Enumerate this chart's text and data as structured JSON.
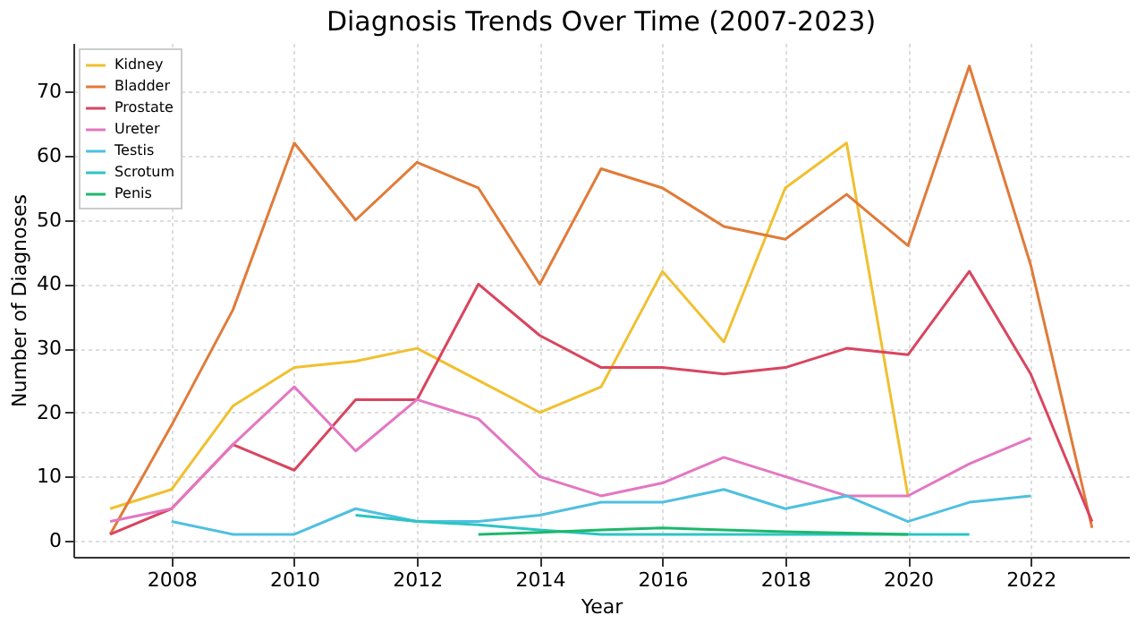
{
  "chart_data": {
    "type": "line",
    "title": "Diagnosis Trends Over Time (2007-2023)",
    "xlabel": "Year",
    "ylabel": "Number of Diagnoses",
    "x": [
      2007,
      2008,
      2009,
      2010,
      2011,
      2012,
      2013,
      2014,
      2015,
      2016,
      2017,
      2018,
      2019,
      2020,
      2021,
      2022,
      2023
    ],
    "series": [
      {
        "name": "Kidney",
        "color": "#f0c030",
        "values": [
          5,
          8,
          21,
          27,
          28,
          30,
          25,
          20,
          24,
          42,
          31,
          55,
          62,
          7,
          null,
          null,
          null
        ]
      },
      {
        "name": "Bladder",
        "color": "#e07b39",
        "values": [
          1,
          18,
          36,
          62,
          50,
          59,
          55,
          40,
          58,
          55,
          49,
          47,
          54,
          46,
          74,
          43,
          2
        ]
      },
      {
        "name": "Prostate",
        "color": "#d9455f",
        "values": [
          1,
          5,
          15,
          11,
          22,
          22,
          40,
          32,
          27,
          27,
          26,
          27,
          30,
          29,
          42,
          26,
          3
        ]
      },
      {
        "name": "Ureter",
        "color": "#e377c2",
        "values": [
          3,
          5,
          15,
          24,
          14,
          22,
          19,
          10,
          7,
          9,
          13,
          10,
          7,
          7,
          12,
          16,
          null
        ]
      },
      {
        "name": "Testis",
        "color": "#4fc0e0",
        "values": [
          null,
          3,
          1,
          1,
          5,
          3,
          3,
          4,
          6,
          6,
          8,
          5,
          7,
          3,
          6,
          7,
          null
        ]
      },
      {
        "name": "Scrotum",
        "color": "#2ec4c4",
        "values": [
          null,
          null,
          null,
          null,
          4,
          3,
          2.5,
          1.7,
          1,
          1,
          1,
          1,
          1,
          1,
          1,
          null,
          null
        ]
      },
      {
        "name": "Penis",
        "color": "#1db86b",
        "values": [
          null,
          null,
          null,
          null,
          null,
          null,
          1,
          1.3,
          1.7,
          2,
          1.7,
          1.4,
          1.2,
          1,
          null,
          null,
          null
        ]
      }
    ],
    "xlim": [
      2006.4,
      2023.6
    ],
    "ylim": [
      -2.5,
      77.6
    ],
    "xticks": [
      2008,
      2010,
      2012,
      2014,
      2016,
      2018,
      2020,
      2022
    ],
    "yticks": [
      0,
      10,
      20,
      30,
      40,
      50,
      60,
      70
    ],
    "grid": true,
    "legend": "top left",
    "marker": "none",
    "line_style": "solid"
  }
}
